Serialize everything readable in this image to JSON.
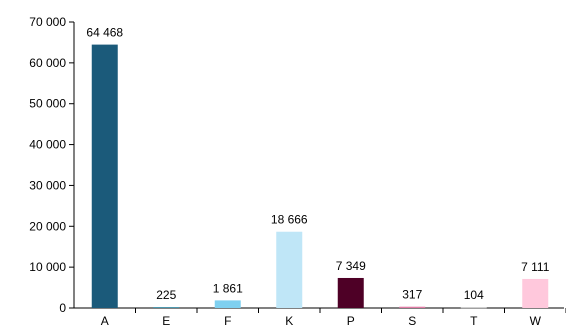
{
  "chart_data": {
    "type": "bar",
    "title": "",
    "xlabel": "",
    "ylabel": "",
    "categories": [
      "A",
      "E",
      "F",
      "K",
      "P",
      "S",
      "T",
      "W"
    ],
    "values": [
      64468,
      225,
      1861,
      18666,
      7349,
      317,
      104,
      7111
    ],
    "value_labels": [
      "64 468",
      "225",
      "1 861",
      "18 666",
      "7 349",
      "317",
      "104",
      "7 111"
    ],
    "colors": [
      "#1b5a7a",
      "#3d8fa8",
      "#7fd0f0",
      "#bfe6f7",
      "#4e0026",
      "#e07ba5",
      "#bbbbbb",
      "#ffc8dc"
    ],
    "ylim": [
      0,
      70000
    ],
    "yticks": [
      0,
      10000,
      20000,
      30000,
      40000,
      50000,
      60000,
      70000
    ],
    "ytick_labels": [
      "0",
      "10 000",
      "20 000",
      "30 000",
      "40 000",
      "50 000",
      "60 000",
      "70 000"
    ],
    "grid": false,
    "legend": "none"
  }
}
